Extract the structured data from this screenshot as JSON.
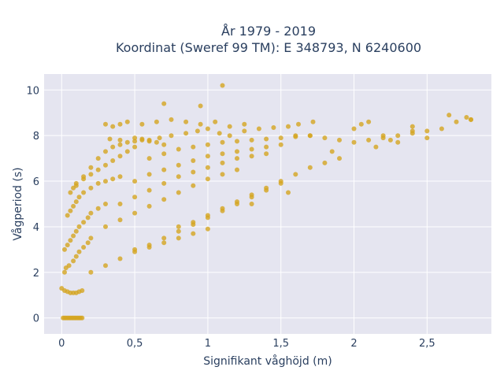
{
  "chart_data": {
    "type": "scatter",
    "title_line1": "År 1979 - 2019",
    "title_line2": "Koordinat (Sweref 99 TM): E 348793, N 6240600",
    "xlabel": "Signifikant våghöjd (m)",
    "ylabel": "Vågperiod (s)",
    "xlim": [
      -0.12,
      2.94
    ],
    "ylim": [
      -0.7,
      10.7
    ],
    "x_ticks": [
      0,
      0.5,
      1,
      1.5,
      2,
      2.5
    ],
    "x_tick_labels": [
      "0",
      "0,5",
      "1",
      "1,5",
      "2",
      "2,5"
    ],
    "y_ticks": [
      0,
      2,
      4,
      6,
      8,
      10
    ],
    "y_tick_labels": [
      "0",
      "2",
      "4",
      "6",
      "8",
      "10"
    ],
    "grid": true,
    "marker_color": "#D4A520",
    "plot_bg": "#E5E5F0",
    "series": [
      {
        "x": [
          0.0,
          0.02,
          0.04,
          0.06,
          0.08,
          0.1,
          0.12,
          0.14,
          0.02,
          0.03,
          0.05,
          0.08,
          0.1,
          0.12,
          0.15,
          0.18,
          0.2,
          0.02,
          0.04,
          0.06,
          0.08,
          0.1,
          0.12,
          0.15,
          0.18,
          0.2,
          0.25,
          0.3,
          0.04,
          0.06,
          0.08,
          0.1,
          0.12,
          0.15,
          0.2,
          0.25,
          0.3,
          0.35,
          0.4,
          0.06,
          0.08,
          0.1,
          0.15,
          0.2,
          0.25,
          0.3,
          0.35,
          0.4,
          0.45,
          0.5,
          0.1,
          0.15,
          0.2,
          0.25,
          0.3,
          0.35,
          0.4,
          0.45,
          0.5,
          0.55,
          0.6,
          0.65,
          0.7,
          0.2,
          0.3,
          0.4,
          0.5,
          0.6,
          0.7,
          0.8,
          0.9,
          1.0,
          0.3,
          0.4,
          0.5,
          0.6,
          0.7,
          0.8,
          0.9,
          1.0,
          1.1,
          1.2,
          0.4,
          0.5,
          0.6,
          0.7,
          0.8,
          0.9,
          1.0,
          1.1,
          1.2,
          1.3,
          1.4,
          0.5,
          0.6,
          0.7,
          0.8,
          0.9,
          1.0,
          1.1,
          1.2,
          1.3,
          1.4,
          1.5,
          0.6,
          0.7,
          0.8,
          0.9,
          1.0,
          1.1,
          1.2,
          1.3,
          1.4,
          1.5,
          1.6,
          1.7,
          0.8,
          0.9,
          1.0,
          1.1,
          1.2,
          1.3,
          1.4,
          1.5,
          1.6,
          1.7,
          1.8,
          1.9,
          1.6,
          1.7,
          1.8,
          1.9,
          2.0,
          2.1,
          2.2,
          2.3,
          2.4,
          2.0,
          2.1,
          2.2,
          2.3,
          2.4,
          2.5,
          2.6,
          2.7,
          2.8,
          0.33,
          0.4,
          0.5,
          0.55,
          0.6,
          0.67,
          0.75,
          0.85,
          0.93,
          1.0,
          1.08,
          1.15,
          1.25,
          1.35,
          1.45,
          1.55,
          1.62,
          1.72,
          0.5,
          0.6,
          0.7,
          0.8,
          0.9,
          1.0,
          1.1,
          1.2,
          1.3,
          1.4,
          1.5,
          1.1,
          0.7,
          0.95,
          2.05,
          2.65,
          2.77,
          2.8,
          2.5,
          2.4,
          2.25,
          2.15,
          1.85,
          1.55,
          1.3,
          0.3,
          0.35,
          0.4,
          0.45,
          0.55,
          0.65,
          0.75,
          0.85,
          0.95,
          1.05,
          1.15,
          1.25,
          0.01,
          0.02,
          0.03,
          0.04,
          0.05,
          0.06,
          0.07,
          0.08,
          0.09,
          0.1,
          0.11,
          0.12,
          0.13,
          0.14
        ],
        "y": [
          1.3,
          1.2,
          1.15,
          1.1,
          1.1,
          1.1,
          1.15,
          1.2,
          2.0,
          2.2,
          2.3,
          2.5,
          2.7,
          2.9,
          3.1,
          3.3,
          3.5,
          3.0,
          3.2,
          3.4,
          3.6,
          3.8,
          4.0,
          4.2,
          4.4,
          4.6,
          4.8,
          5.0,
          4.5,
          4.7,
          4.9,
          5.1,
          5.3,
          5.5,
          5.7,
          5.9,
          6.0,
          6.1,
          6.2,
          5.5,
          5.7,
          5.9,
          6.1,
          6.3,
          6.5,
          6.7,
          6.9,
          7.1,
          7.3,
          7.5,
          5.8,
          6.2,
          6.6,
          7.0,
          7.3,
          7.5,
          7.6,
          7.7,
          7.75,
          7.8,
          7.75,
          7.7,
          7.6,
          2.0,
          2.3,
          2.6,
          2.9,
          3.1,
          3.3,
          3.5,
          3.7,
          3.9,
          4.0,
          4.3,
          4.6,
          4.9,
          5.2,
          5.5,
          5.8,
          6.1,
          6.3,
          6.5,
          5.0,
          5.3,
          5.6,
          5.9,
          6.2,
          6.4,
          6.6,
          6.8,
          7.0,
          7.1,
          7.2,
          6.0,
          6.3,
          6.5,
          6.7,
          6.9,
          7.1,
          7.2,
          7.3,
          7.4,
          7.5,
          7.6,
          7.0,
          7.2,
          7.4,
          7.5,
          7.6,
          7.7,
          7.75,
          7.8,
          7.85,
          7.9,
          7.95,
          8.0,
          4.0,
          4.2,
          4.5,
          4.8,
          5.1,
          5.4,
          5.7,
          6.0,
          6.3,
          6.6,
          6.8,
          7.0,
          8.0,
          8.0,
          7.9,
          7.8,
          7.7,
          7.8,
          7.9,
          8.0,
          8.1,
          8.3,
          8.6,
          8.0,
          7.7,
          8.4,
          8.2,
          8.3,
          8.6,
          8.7,
          7.85,
          7.8,
          7.9,
          7.85,
          7.8,
          7.9,
          8.0,
          8.1,
          8.2,
          8.3,
          8.1,
          8.0,
          8.2,
          8.3,
          8.35,
          8.4,
          8.5,
          8.6,
          3.0,
          3.2,
          3.5,
          3.8,
          4.1,
          4.4,
          4.7,
          5.0,
          5.3,
          5.6,
          5.9,
          10.2,
          9.4,
          9.3,
          8.5,
          8.9,
          8.8,
          8.7,
          7.9,
          8.2,
          7.8,
          7.5,
          7.3,
          5.5,
          5.0,
          8.5,
          8.4,
          8.5,
          8.6,
          8.5,
          8.6,
          8.7,
          8.6,
          8.5,
          8.6,
          8.4,
          8.5,
          0.0,
          0.0,
          0.0,
          0.0,
          0.0,
          0.0,
          0.0,
          0.0,
          0.0,
          0.0,
          0.0,
          0.0,
          0.0,
          0.0
        ]
      }
    ]
  }
}
